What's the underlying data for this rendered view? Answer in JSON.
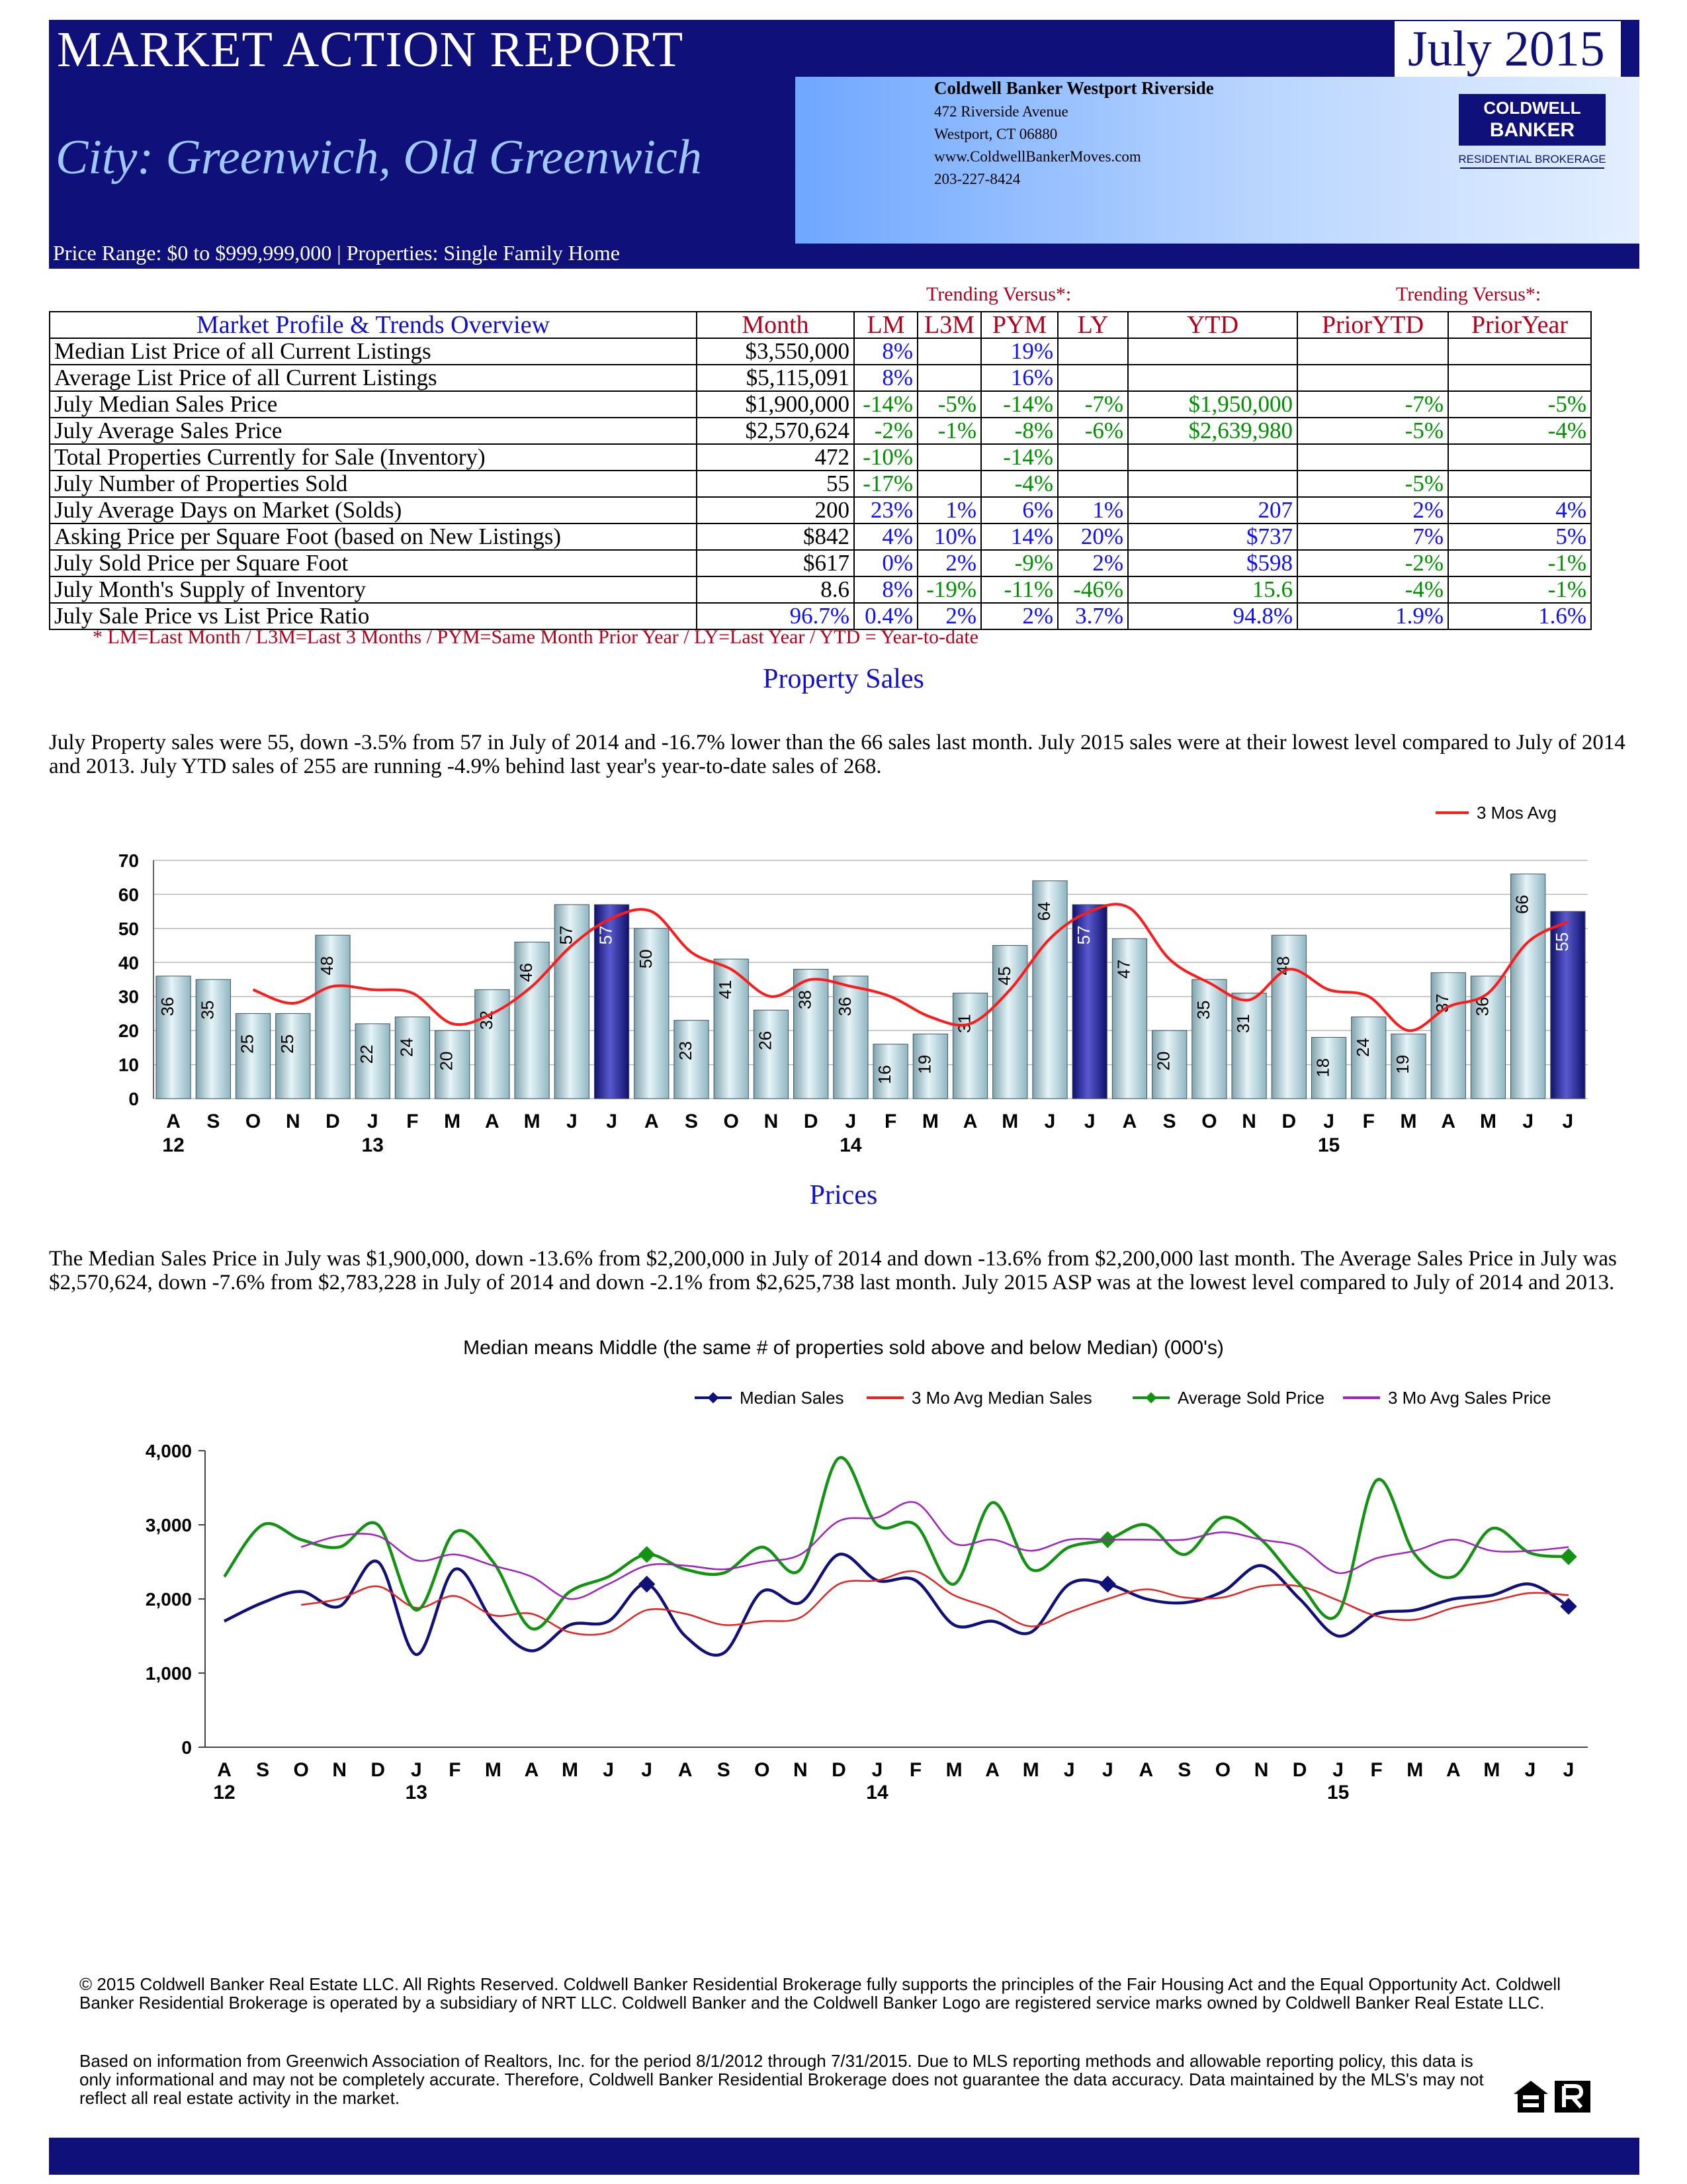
{
  "header": {
    "title": "MARKET ACTION REPORT",
    "date": "July 2015",
    "city": "City: Greenwich, Old Greenwich",
    "price_range": "Price Range: $0 to $999,999,000 | Properties: Single Family Home",
    "office": {
      "name": "Coldwell Banker Westport Riverside",
      "address1": "472 Riverside Avenue",
      "address2": "Westport, CT 06880",
      "website": "www.ColdwellBankerMoves.com",
      "phone": "203-227-8424"
    },
    "logo": {
      "line1": "COLDWELL",
      "line2": "BANKER",
      "line3": "RESIDENTIAL BROKERAGE"
    }
  },
  "table": {
    "trending_left": "Trending Versus*:",
    "trending_right": "Trending Versus*:",
    "headers": [
      "Market Profile & Trends Overview",
      "Month",
      "LM",
      "L3M",
      "PYM",
      "LY",
      "YTD",
      "PriorYTD",
      "PriorYear"
    ],
    "rows": [
      [
        "Median List Price of all Current Listings",
        "$3,550,000",
        "8%",
        "",
        "19%",
        "",
        "",
        "",
        ""
      ],
      [
        "Average List Price of all Current Listings",
        "$5,115,091",
        "8%",
        "",
        "16%",
        "",
        "",
        "",
        ""
      ],
      [
        "July Median Sales Price",
        "$1,900,000",
        "-14%",
        "-5%",
        "-14%",
        "-7%",
        "$1,950,000",
        "-7%",
        "-5%"
      ],
      [
        "July Average Sales Price",
        "$2,570,624",
        "-2%",
        "-1%",
        "-8%",
        "-6%",
        "$2,639,980",
        "-5%",
        "-4%"
      ],
      [
        "Total Properties Currently for Sale (Inventory)",
        "472",
        "-10%",
        "",
        "-14%",
        "",
        "",
        "",
        ""
      ],
      [
        "July Number of Properties Sold",
        "55",
        "-17%",
        "",
        "-4%",
        "",
        "",
        "-5%",
        ""
      ],
      [
        "July Average Days on Market (Solds)",
        "200",
        "23%",
        "1%",
        "6%",
        "1%",
        "207",
        "2%",
        "4%"
      ],
      [
        "Asking Price per Square Foot (based on New Listings)",
        "$842",
        "4%",
        "10%",
        "14%",
        "20%",
        "$737",
        "7%",
        "5%"
      ],
      [
        "July Sold Price per Square Foot",
        "$617",
        "0%",
        "2%",
        "-9%",
        "2%",
        "$598",
        "-2%",
        "-1%"
      ],
      [
        "July Month's Supply of Inventory",
        "8.6",
        "8%",
        "-19%",
        "-11%",
        "-46%",
        "15.6",
        "-4%",
        "-1%"
      ],
      [
        "July Sale Price vs List Price Ratio",
        "96.7%",
        "0.4%",
        "2%",
        "2%",
        "3.7%",
        "94.8%",
        "1.9%",
        "1.6%"
      ]
    ],
    "footnote": "* LM=Last Month / L3M=Last 3 Months / PYM=Same Month Prior Year / LY=Last Year / YTD = Year-to-date"
  },
  "property_sales": {
    "title": "Property Sales",
    "text": "July Property sales were 55, down -3.5% from 57 in July of 2014 and -16.7% lower than the  66 sales last month.  July 2015 sales were at their lowest level compared to July of 2014 and 2013.  July YTD sales of 255 are running -4.9% behind last year's year-to-date sales of 268."
  },
  "prices": {
    "title": "Prices",
    "text": "The Median Sales Price in July was $1,900,000, down -13.6% from $2,200,000 in July of 2014 and down -13.6% from $2,200,000 last month.  The Average Sales Price in July was $2,570,624, down -7.6% from $2,783,228 in July of 2014 and down -2.1% from $2,625,738 last month.  July 2015 ASP was at the lowest level compared to July of 2014 and 2013."
  },
  "chart_data": [
    {
      "type": "bar",
      "categories": [
        "A",
        "S",
        "O",
        "N",
        "D",
        "J",
        "F",
        "M",
        "A",
        "M",
        "J",
        "J",
        "A",
        "S",
        "O",
        "N",
        "D",
        "J",
        "F",
        "M",
        "A",
        "M",
        "J",
        "J",
        "A",
        "S",
        "O",
        "N",
        "D",
        "J",
        "F",
        "M",
        "A",
        "M",
        "J",
        "J"
      ],
      "year_labels": [
        {
          "index": 0,
          "label": "12"
        },
        {
          "index": 5,
          "label": "13"
        },
        {
          "index": 17,
          "label": "14"
        },
        {
          "index": 29,
          "label": "15"
        }
      ],
      "series": [
        {
          "name": "Sales",
          "values": [
            36,
            35,
            25,
            25,
            48,
            22,
            24,
            20,
            32,
            46,
            57,
            57,
            50,
            23,
            41,
            26,
            38,
            36,
            16,
            19,
            31,
            45,
            64,
            57,
            47,
            20,
            35,
            31,
            48,
            18,
            24,
            19,
            37,
            36,
            66,
            55
          ]
        },
        {
          "name": "3 Mos Avg",
          "values": [
            null,
            null,
            32,
            28,
            33,
            32,
            31,
            22,
            25,
            33,
            45,
            53,
            55,
            43,
            38,
            30,
            35,
            33,
            30,
            24,
            22,
            32,
            47,
            55,
            56,
            41,
            34,
            29,
            38,
            32,
            30,
            20,
            27,
            31,
            46,
            52
          ]
        }
      ],
      "highlight_indices": [
        11,
        23,
        35
      ],
      "legend": [
        "3 Mos Avg"
      ],
      "legend_position": "top-right",
      "ylim": [
        0,
        70
      ],
      "yticks": [
        0,
        10,
        20,
        30,
        40,
        50,
        60,
        70
      ],
      "grid": true
    },
    {
      "type": "line",
      "title": "Median means Middle (the same # of properties sold above and below Median) (000's)",
      "categories": [
        "A",
        "S",
        "O",
        "N",
        "D",
        "J",
        "F",
        "M",
        "A",
        "M",
        "J",
        "J",
        "A",
        "S",
        "O",
        "N",
        "D",
        "J",
        "F",
        "M",
        "A",
        "M",
        "J",
        "J",
        "A",
        "S",
        "O",
        "N",
        "D",
        "J",
        "F",
        "M",
        "A",
        "M",
        "J",
        "J"
      ],
      "year_labels": [
        {
          "index": 0,
          "label": "12"
        },
        {
          "index": 5,
          "label": "13"
        },
        {
          "index": 17,
          "label": "14"
        },
        {
          "index": 29,
          "label": "15"
        }
      ],
      "series": [
        {
          "name": "Median Sales",
          "color": "#10107a",
          "values": [
            1700,
            1950,
            2100,
            1900,
            2500,
            1250,
            2400,
            1700,
            1300,
            1650,
            1700,
            2200,
            1500,
            1270,
            2100,
            1950,
            2600,
            2250,
            2250,
            1650,
            1700,
            1550,
            2200,
            2200,
            2000,
            1950,
            2100,
            2450,
            2000,
            1500,
            1800,
            1850,
            2000,
            2050,
            2200,
            1900
          ]
        },
        {
          "name": "3 Mo Avg Median Sales",
          "color": "#e82020",
          "values": [
            null,
            null,
            1920,
            2000,
            2170,
            1880,
            2040,
            1780,
            1800,
            1550,
            1550,
            1850,
            1800,
            1650,
            1700,
            1750,
            2200,
            2250,
            2370,
            2050,
            1870,
            1630,
            1820,
            2000,
            2130,
            2020,
            2020,
            2170,
            2170,
            1980,
            1770,
            1720,
            1880,
            1970,
            2080,
            2050
          ]
        },
        {
          "name": "Average Sold Price",
          "color": "#129412",
          "values": [
            2300,
            3000,
            2800,
            2700,
            3000,
            1850,
            2900,
            2500,
            1600,
            2100,
            2300,
            2600,
            2400,
            2350,
            2700,
            2400,
            3900,
            3000,
            3000,
            2200,
            3300,
            2400,
            2700,
            2800,
            3000,
            2600,
            3100,
            2800,
            2200,
            1800,
            3600,
            2600,
            2300,
            2950,
            2620,
            2570
          ]
        },
        {
          "name": "3 Mo Avg Sales Price",
          "color": "#a020c0",
          "values": [
            null,
            null,
            2700,
            2850,
            2850,
            2520,
            2600,
            2450,
            2300,
            2000,
            2200,
            2450,
            2450,
            2400,
            2500,
            2600,
            3050,
            3100,
            3300,
            2750,
            2800,
            2650,
            2800,
            2800,
            2800,
            2800,
            2900,
            2800,
            2700,
            2350,
            2550,
            2650,
            2800,
            2650,
            2650,
            2700
          ]
        }
      ],
      "marker_indices": [
        11,
        23,
        35
      ],
      "legend_position": "top",
      "ylim": [
        0,
        4000
      ],
      "yticks": [
        0,
        1000,
        2000,
        3000,
        4000
      ],
      "ytick_labels": [
        "0",
        "1,000",
        "2,000",
        "3,000",
        "4,000"
      ],
      "grid": false
    }
  ],
  "legal": {
    "p1": "© 2015 Coldwell Banker Real Estate LLC.   All Rights Reserved. Coldwell Banker Residential Brokerage fully supports the principles of the Fair Housing Act and the Equal Opportunity Act.  Coldwell Banker Residential Brokerage is operated by a subsidiary of NRT LLC.  Coldwell Banker and the Coldwell Banker Logo are registered service marks owned by Coldwell Banker Real Estate LLC.",
    "p2": "Based on information from Greenwich Association of Realtors, Inc. for the period 8/1/2012 through 7/31/2015.  Due to MLS reporting methods and allowable reporting policy, this data is only informational and may not be completely accurate.  Therefore, Coldwell Banker Residential Brokerage does not guarantee the data accuracy.  Data maintained by the MLS's may not reflect all real estate activity in the market.",
    "equal_housing_icon": "equal-housing-icon",
    "realtor_icon": "realtor-icon"
  },
  "colors": {
    "navy": "#10107a",
    "red": "#b3001b",
    "blue": "#1010ff",
    "green": "#009000"
  }
}
